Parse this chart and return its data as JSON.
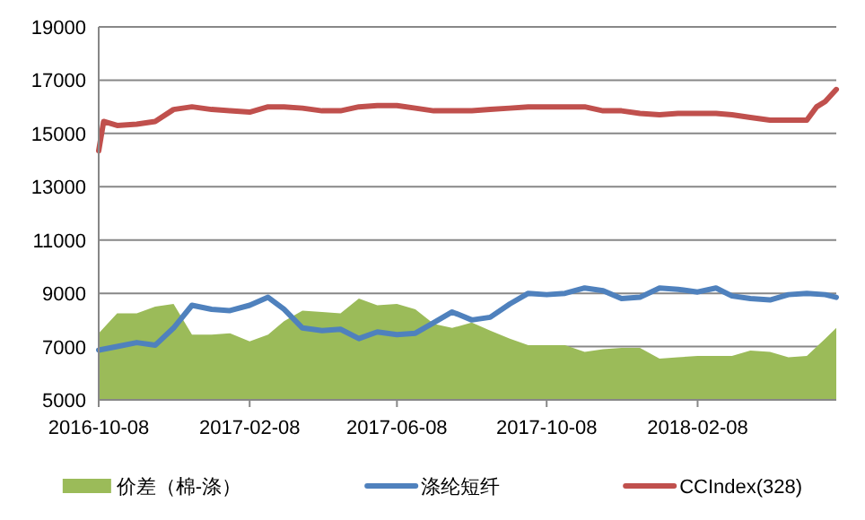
{
  "chart_data": {
    "type": "line",
    "x": [
      "2016-10-08",
      "2016-10-23",
      "2016-11-08",
      "2016-11-23",
      "2016-12-08",
      "2016-12-23",
      "2017-01-08",
      "2017-01-23",
      "2017-02-08",
      "2017-02-23",
      "2017-03-08",
      "2017-03-23",
      "2017-04-08",
      "2017-04-23",
      "2017-05-08",
      "2017-05-23",
      "2017-06-08",
      "2017-06-23",
      "2017-07-08",
      "2017-07-23",
      "2017-08-08",
      "2017-08-23",
      "2017-09-08",
      "2017-09-23",
      "2017-10-08",
      "2017-10-23",
      "2017-11-08",
      "2017-11-23",
      "2017-12-08",
      "2017-12-23",
      "2018-01-08",
      "2018-01-23",
      "2018-02-08",
      "2018-02-23",
      "2018-03-08",
      "2018-03-23",
      "2018-04-08",
      "2018-04-23",
      "2018-05-08",
      "2018-05-23",
      "2018-06-01"
    ],
    "series": [
      {
        "name": "价差（棉-涤）",
        "type": "area",
        "color": "#9bbb59",
        "values": [
          7500,
          8250,
          8250,
          8500,
          8600,
          7450,
          7450,
          7500,
          7200,
          7450,
          7950,
          8350,
          8300,
          8250,
          8800,
          8550,
          8600,
          8400,
          7850,
          7700,
          7900,
          7600,
          7300,
          7050,
          7050,
          7050,
          6800,
          6900,
          6950,
          6950,
          6550,
          6600,
          6650,
          6650,
          6650,
          6850,
          6800,
          6600,
          6650,
          7300,
          7700
        ]
      },
      {
        "name": "涤纶短纤",
        "color": "#4f81bd",
        "values": [
          6870,
          7000,
          7150,
          7050,
          7700,
          8550,
          8400,
          8350,
          8550,
          8850,
          8400,
          7700,
          7600,
          7650,
          7300,
          7550,
          7450,
          7500,
          7900,
          8300,
          8000,
          8100,
          8600,
          9000,
          8950,
          9000,
          9200,
          9100,
          8800,
          8850,
          9200,
          9150,
          9050,
          9200,
          8900,
          8800,
          8750,
          8950,
          9000,
          8950,
          8850
        ]
      },
      {
        "name": "CCIndex(328)",
        "color": "#c0504d",
        "x": [
          "2016-10-08",
          "2016-10-12",
          "2016-10-23",
          "2016-11-08",
          "2016-11-23",
          "2016-12-08",
          "2016-12-23",
          "2017-01-08",
          "2017-01-23",
          "2017-02-08",
          "2017-02-23",
          "2017-03-08",
          "2017-03-23",
          "2017-04-08",
          "2017-04-23",
          "2017-05-08",
          "2017-05-23",
          "2017-06-08",
          "2017-06-23",
          "2017-07-08",
          "2017-07-23",
          "2017-08-08",
          "2017-08-23",
          "2017-09-08",
          "2017-09-23",
          "2017-10-08",
          "2017-10-23",
          "2017-11-08",
          "2017-11-23",
          "2017-12-08",
          "2017-12-23",
          "2018-01-08",
          "2018-01-23",
          "2018-02-08",
          "2018-02-23",
          "2018-03-08",
          "2018-03-23",
          "2018-04-08",
          "2018-04-23",
          "2018-05-08",
          "2018-05-16",
          "2018-05-23",
          "2018-06-01"
        ],
        "values": [
          14350,
          15450,
          15300,
          15350,
          15450,
          15900,
          16000,
          15900,
          15850,
          15800,
          16000,
          16000,
          15950,
          15850,
          15850,
          16000,
          16050,
          16050,
          15950,
          15850,
          15850,
          15850,
          15900,
          15950,
          16000,
          16000,
          16000,
          16000,
          15850,
          15850,
          15750,
          15700,
          15750,
          15750,
          15750,
          15700,
          15600,
          15500,
          15500,
          15500,
          16000,
          16200,
          16650
        ]
      }
    ],
    "xlim": [
      "2016-10-08",
      "2018-06-01"
    ],
    "xticks": [
      "2016-10-08",
      "2017-02-08",
      "2017-06-08",
      "2017-10-08",
      "2018-02-08"
    ],
    "ylim": [
      5000,
      19000
    ],
    "yticks": [
      5000,
      7000,
      9000,
      11000,
      13000,
      15000,
      17000,
      19000
    ],
    "grid": "y",
    "legend": "bottom"
  }
}
